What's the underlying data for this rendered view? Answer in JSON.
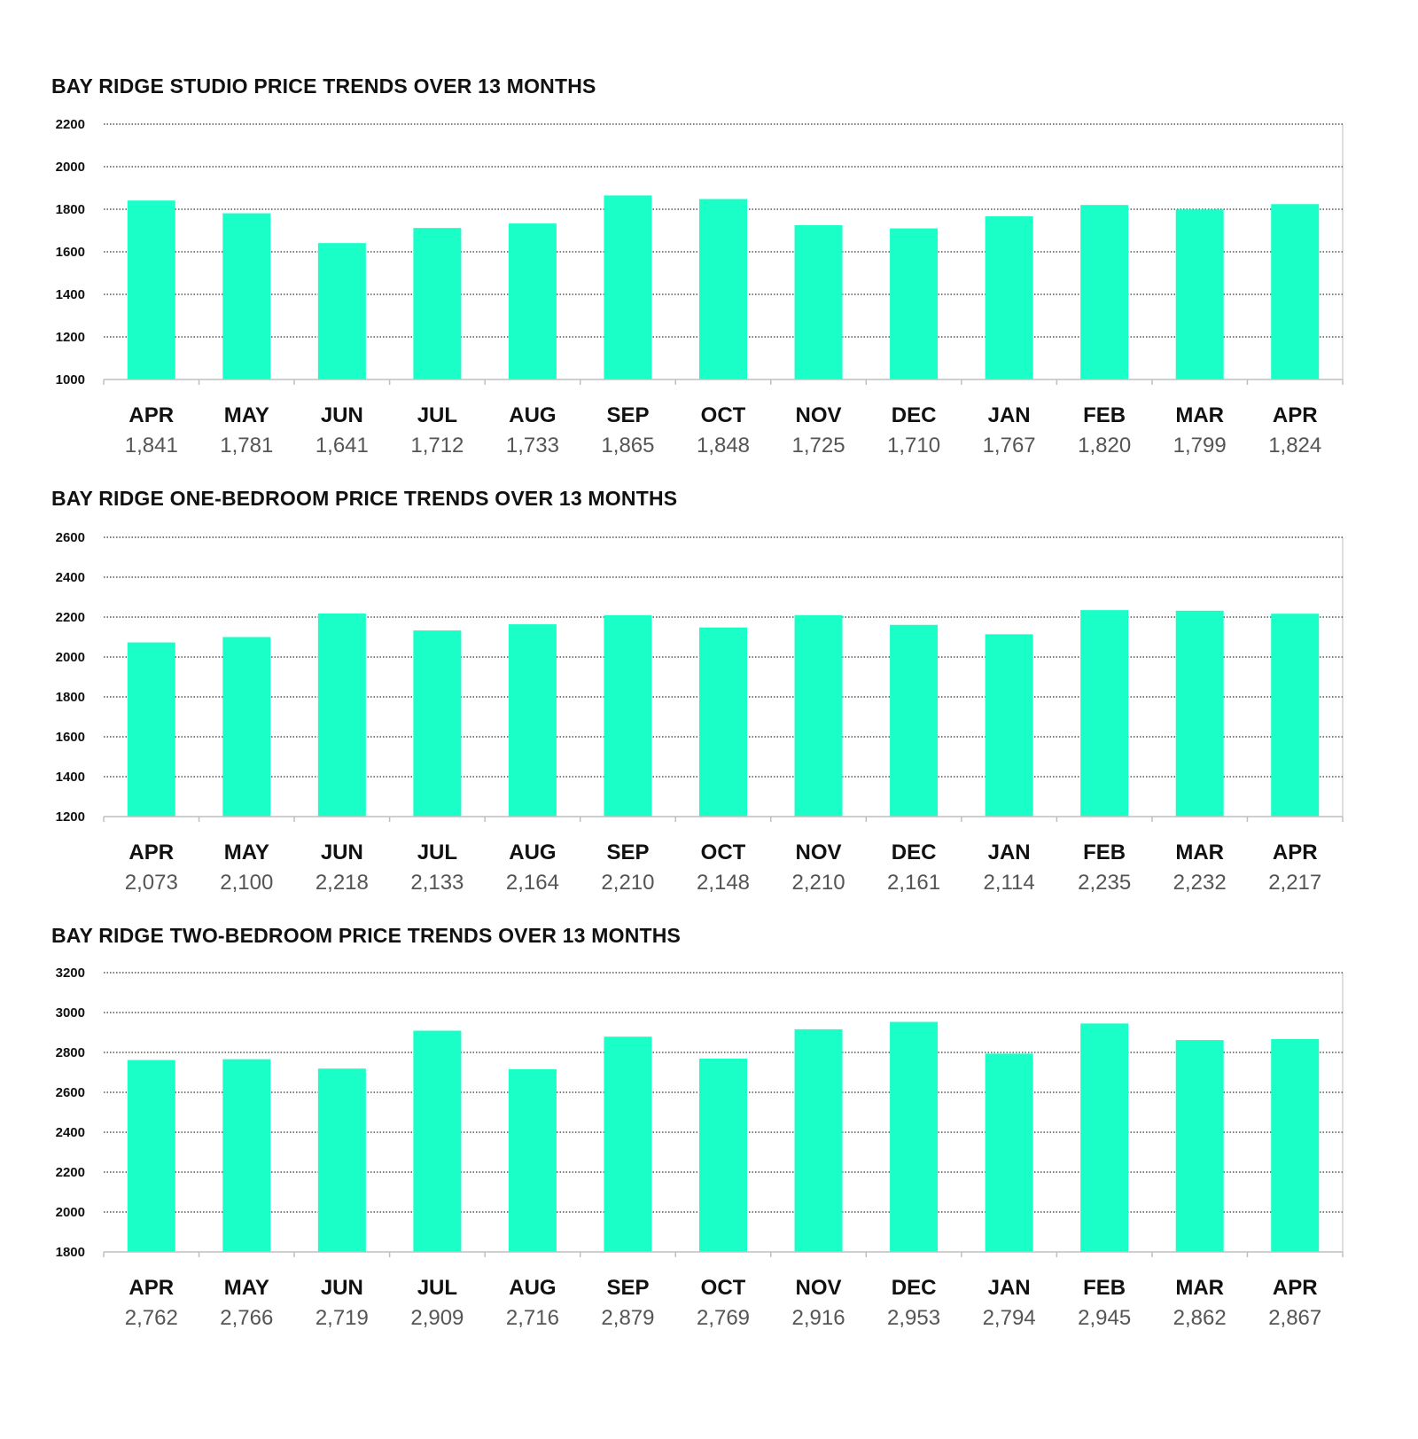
{
  "colors": {
    "bar": "#1affc8",
    "grid": "#333333",
    "axis": "#bfbfbf"
  },
  "chart_data": [
    {
      "type": "bar",
      "title": "BAY RIDGE STUDIO PRICE TRENDS OVER 13 MONTHS",
      "categories": [
        "APR",
        "MAY",
        "JUN",
        "JUL",
        "AUG",
        "SEP",
        "OCT",
        "NOV",
        "DEC",
        "JAN",
        "FEB",
        "MAR",
        "APR"
      ],
      "values": [
        1841,
        1781,
        1641,
        1712,
        1733,
        1865,
        1848,
        1725,
        1710,
        1767,
        1820,
        1799,
        1824
      ],
      "value_labels": [
        "1,841",
        "1,781",
        "1,641",
        "1,712",
        "1,733",
        "1,865",
        "1,848",
        "1,725",
        "1,710",
        "1,767",
        "1,820",
        "1,799",
        "1,824"
      ],
      "yticks": [
        1000,
        1200,
        1400,
        1600,
        1800,
        2000,
        2200
      ],
      "ylim": [
        1000,
        2200
      ],
      "grid": true
    },
    {
      "type": "bar",
      "title": "BAY RIDGE ONE-BEDROOM PRICE TRENDS OVER 13 MONTHS",
      "categories": [
        "APR",
        "MAY",
        "JUN",
        "JUL",
        "AUG",
        "SEP",
        "OCT",
        "NOV",
        "DEC",
        "JAN",
        "FEB",
        "MAR",
        "APR"
      ],
      "values": [
        2073,
        2100,
        2218,
        2133,
        2164,
        2210,
        2148,
        2210,
        2161,
        2114,
        2235,
        2232,
        2217
      ],
      "value_labels": [
        "2,073",
        "2,100",
        "2,218",
        "2,133",
        "2,164",
        "2,210",
        "2,148",
        "2,210",
        "2,161",
        "2,114",
        "2,235",
        "2,232",
        "2,217"
      ],
      "yticks": [
        1200,
        1400,
        1600,
        1800,
        2000,
        2200,
        2400,
        2600
      ],
      "ylim": [
        1200,
        2600
      ],
      "grid": true
    },
    {
      "type": "bar",
      "title": "BAY RIDGE TWO-BEDROOM PRICE TRENDS OVER 13 MONTHS",
      "categories": [
        "APR",
        "MAY",
        "JUN",
        "JUL",
        "AUG",
        "SEP",
        "OCT",
        "NOV",
        "DEC",
        "JAN",
        "FEB",
        "MAR",
        "APR"
      ],
      "values": [
        2762,
        2766,
        2719,
        2909,
        2716,
        2879,
        2769,
        2916,
        2953,
        2794,
        2945,
        2862,
        2867
      ],
      "value_labels": [
        "2,762",
        "2,766",
        "2,719",
        "2,909",
        "2,716",
        "2,879",
        "2,769",
        "2,916",
        "2,953",
        "2,794",
        "2,945",
        "2,862",
        "2,867"
      ],
      "yticks": [
        1800,
        2000,
        2200,
        2400,
        2600,
        2800,
        3000,
        3200
      ],
      "ylim": [
        1800,
        3200
      ],
      "grid": true
    }
  ]
}
